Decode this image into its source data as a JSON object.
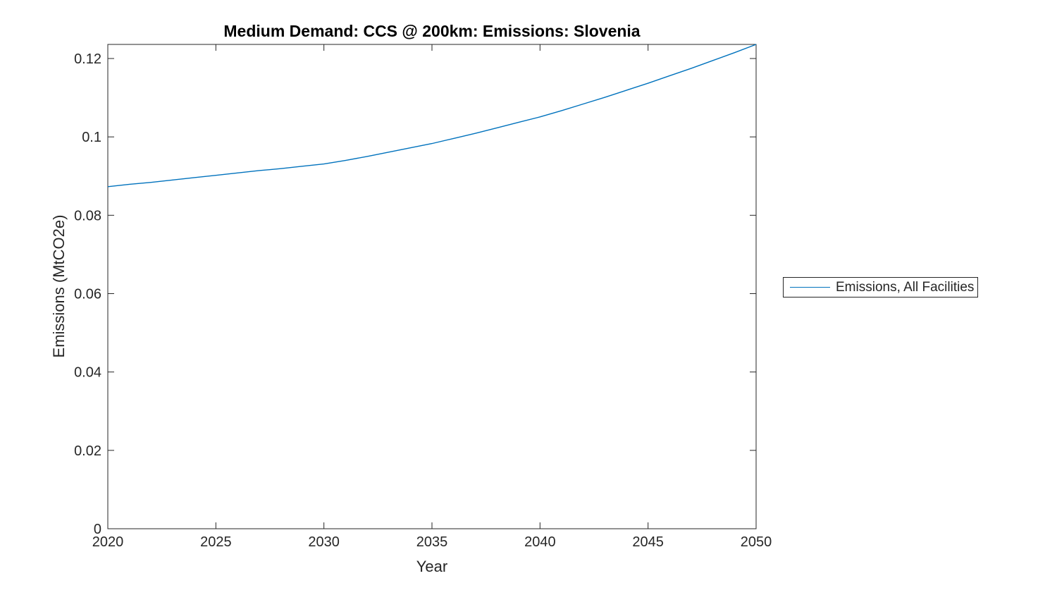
{
  "chart_data": {
    "type": "line",
    "title": "Medium Demand: CCS @ 200km: Emissions: Slovenia",
    "xlabel": "Year",
    "ylabel": "Emissions (MtCO2e)",
    "xlim": [
      2020,
      2050
    ],
    "ylim": [
      0,
      0.1236
    ],
    "x_ticks": [
      2020,
      2025,
      2030,
      2035,
      2040,
      2045,
      2050
    ],
    "x_tick_labels": [
      "2020",
      "2025",
      "2030",
      "2035",
      "2040",
      "2045",
      "2050"
    ],
    "y_ticks": [
      0,
      0.02,
      0.04,
      0.06,
      0.08,
      0.1,
      0.12
    ],
    "y_tick_labels": [
      "0",
      "0.02",
      "0.04",
      "0.06",
      "0.08",
      "0.1",
      "0.12"
    ],
    "grid": false,
    "box": true,
    "tick_direction": "in",
    "legend_position": "right-outside",
    "series": [
      {
        "name": "Emissions, All Facilities",
        "color": "#0072BD",
        "x": [
          2020,
          2021,
          2022,
          2023,
          2024,
          2025,
          2026,
          2027,
          2028,
          2029,
          2030,
          2031,
          2032,
          2033,
          2034,
          2035,
          2036,
          2037,
          2038,
          2039,
          2040,
          2041,
          2042,
          2043,
          2044,
          2045,
          2046,
          2047,
          2048,
          2049,
          2050
        ],
        "y": [
          0.0873,
          0.0879,
          0.0884,
          0.089,
          0.0896,
          0.0902,
          0.0908,
          0.0914,
          0.0919,
          0.0925,
          0.0931,
          0.094,
          0.095,
          0.0961,
          0.0972,
          0.0983,
          0.0996,
          0.1009,
          0.1023,
          0.1037,
          0.1051,
          0.1067,
          0.1084,
          0.1101,
          0.1119,
          0.1137,
          0.1156,
          0.1175,
          0.1195,
          0.1215,
          0.1236
        ]
      }
    ]
  },
  "legend": {
    "entries": [
      {
        "label": "Emissions, All Facilities",
        "color": "#0072BD"
      }
    ]
  },
  "colors": {
    "axis": "#262626",
    "tick_label": "#262626",
    "title": "#000000",
    "line": "#0072BD",
    "background": "#ffffff"
  }
}
